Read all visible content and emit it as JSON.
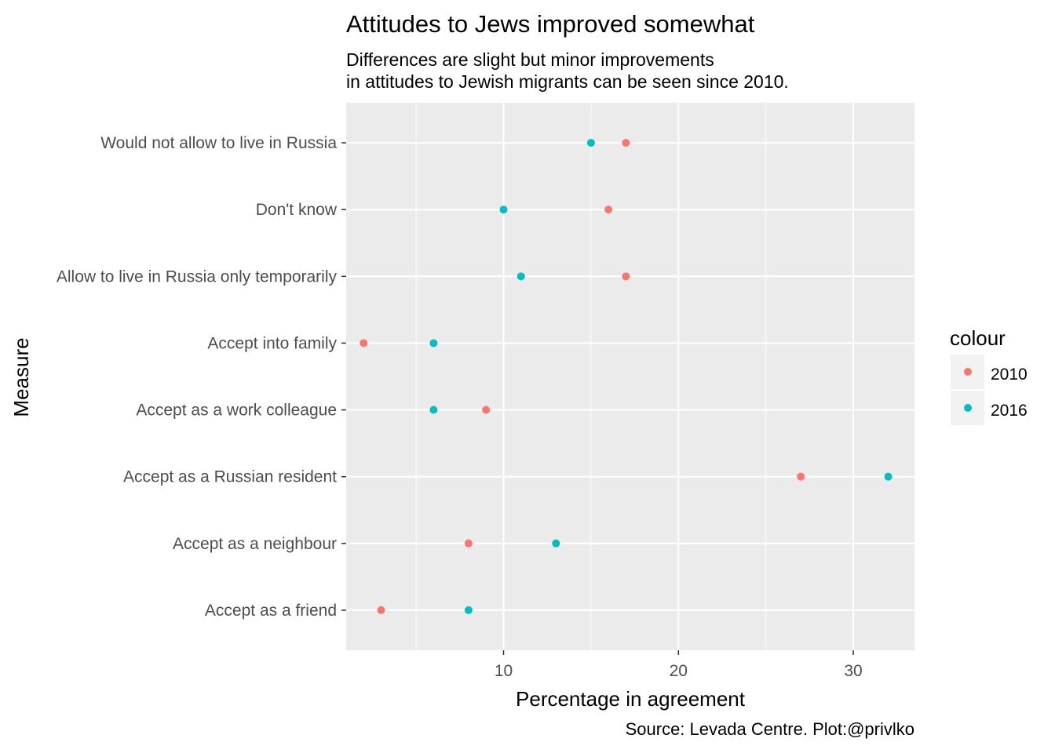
{
  "chart_data": {
    "type": "scatter",
    "title": "Attitudes to Jews improved somewhat",
    "subtitle": [
      "Differences are slight but minor improvements",
      "in attitudes to Jewish migrants can be seen since 2010."
    ],
    "xlabel": "Percentage in agreement",
    "ylabel": "Measure",
    "caption": "Source: Levada Centre. Plot:@privlko",
    "xlim": [
      1,
      33.5
    ],
    "x_ticks": [
      10,
      20,
      30
    ],
    "grid": true,
    "categories": [
      "Would not allow to live in Russia",
      "Don't know",
      "Allow to live in Russia only temporarily",
      "Accept into family",
      "Accept as a work colleague",
      "Accept as a Russian resident",
      "Accept as a neighbour",
      "Accept as a friend"
    ],
    "legend": {
      "title": "colour",
      "placement": "right"
    },
    "series": [
      {
        "name": "2010",
        "color": "#F8766D",
        "values": [
          17,
          16,
          17,
          2,
          9,
          27,
          8,
          3
        ]
      },
      {
        "name": "2016",
        "color": "#00BFC4",
        "values": [
          15,
          10,
          11,
          6,
          6,
          32,
          13,
          8
        ]
      }
    ]
  }
}
